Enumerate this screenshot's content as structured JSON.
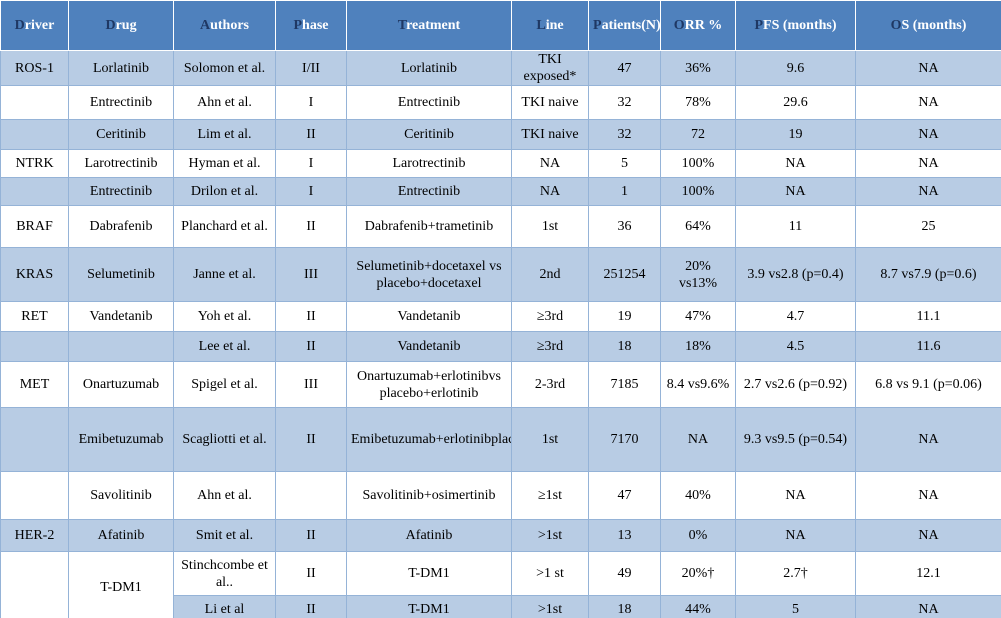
{
  "table": {
    "header": [
      "Driver",
      "Drug",
      "Authors",
      "Phase",
      "Treatment",
      "Line",
      "Patients(N)",
      "ORR %",
      "PFS (months)",
      "OS (months)"
    ],
    "rows": [
      [
        "ROS-1",
        "Lorlatinib",
        "Solomon et al.",
        "I/II",
        "Lorlatinib",
        "TKI exposed*",
        "47",
        "36%",
        "9.6",
        "NA"
      ],
      [
        null,
        "Entrectinib",
        "Ahn et al.",
        "I",
        "Entrectinib",
        "TKI naive",
        "32",
        "78%",
        "29.6",
        "NA"
      ],
      [
        null,
        "Ceritinib",
        "Lim et al.",
        "II",
        "Ceritinib",
        "TKI naive",
        "32",
        "72",
        "19",
        "NA"
      ],
      [
        "NTRK",
        "Larotrectinib",
        "Hyman et al.",
        "I",
        "Larotrectinib",
        "NA",
        "5",
        "100%",
        "NA",
        "NA"
      ],
      [
        null,
        "Entrectinib",
        "Drilon et al.",
        "I",
        "Entrectinib",
        "NA",
        "1",
        "100%",
        "NA",
        "NA"
      ],
      [
        "BRAF",
        "Dabrafenib",
        "Planchard et al.",
        "II",
        "Dabrafenib+trametinib",
        "1st",
        "36",
        "64%",
        "11",
        "25"
      ],
      [
        "KRAS",
        "Selumetinib",
        "Janne et al.",
        "III",
        "Selumetinib+docetaxel vs placebo+docetaxel",
        "2nd",
        "251254",
        "20% vs13%",
        "3.9 vs2.8 (p=0.4)",
        "8.7 vs7.9 (p=0.6)"
      ],
      [
        "RET",
        "Vandetanib",
        "Yoh et al.",
        "II",
        "Vandetanib",
        "≥3rd",
        "19",
        "47%",
        "4.7",
        "11.1"
      ],
      [
        null,
        null,
        "Lee et al.",
        "II",
        "Vandetanib",
        "≥3rd",
        "18",
        "18%",
        "4.5",
        "11.6"
      ],
      [
        "MET",
        "Onartuzumab",
        "Spigel et al.",
        "III",
        "Onartuzumab+erlotinibvs placebo+erlotinib",
        "2-3rd",
        "7185",
        "8.4 vs9.6%",
        "2.7 vs2.6 (p=0.92)",
        "6.8 vs 9.1 (p=0.06)"
      ],
      [
        null,
        "Emibetuzumab",
        "Scagliotti et al.",
        "II",
        "Emibetuzumab+erlotinibplacebo+erlotinib",
        "1st",
        "7170",
        "NA",
        "9.3 vs9.5 (p=0.54)",
        "NA"
      ],
      [
        null,
        "Savolitinib",
        "Ahn et al.",
        null,
        "Savolitinib+osimertinib",
        "≥1st",
        "47",
        "40%",
        "NA",
        "NA"
      ],
      [
        "HER-2",
        "Afatinib",
        "Smit et al.",
        "II",
        "Afatinib",
        ">1st",
        "13",
        "0%",
        "NA",
        "NA"
      ],
      [
        null,
        "T-DM1",
        "Stinchcombe et al..",
        "II",
        "T-DM1",
        ">1 st",
        "49",
        "20%†",
        "2.7†",
        "12.1"
      ],
      [
        null,
        null,
        "Li et al",
        "II",
        "T-DM1",
        ">1st",
        "18",
        "44%",
        "5",
        "NA"
      ]
    ]
  }
}
